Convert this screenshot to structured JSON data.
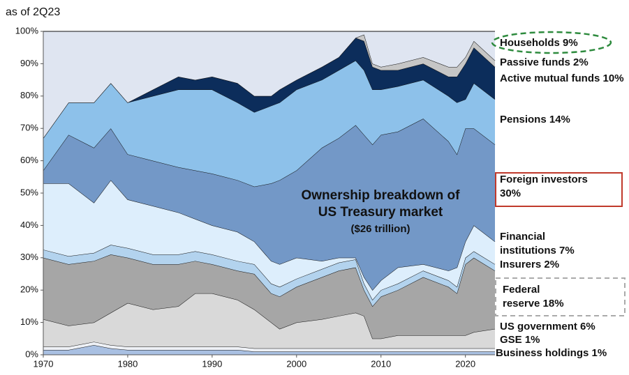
{
  "chart_data": {
    "type": "stacked_area",
    "annotation": "as of 2Q23",
    "title": [
      "Ownership breakdown of",
      "US Treasury market"
    ],
    "subtitle": "($26 trillion)",
    "x": [
      1970,
      1973,
      1976,
      1978,
      1980,
      1983,
      1986,
      1988,
      1990,
      1993,
      1995,
      1997,
      1998,
      2000,
      2003,
      2005,
      2007,
      2008,
      2009,
      2010,
      2012,
      2015,
      2018,
      2019,
      2020,
      2021,
      2023.5
    ],
    "xlim": [
      1970,
      2023.5
    ],
    "xticks": [
      1970,
      1980,
      1990,
      2000,
      2010,
      2020
    ],
    "ylim": [
      0,
      100
    ],
    "yticks": [
      {
        "value": 0,
        "label": "0%"
      },
      {
        "value": 10,
        "label": "10%"
      },
      {
        "value": 20,
        "label": "20%"
      },
      {
        "value": 30,
        "label": "30%"
      },
      {
        "value": 40,
        "label": "40%"
      },
      {
        "value": 50,
        "label": "50%"
      },
      {
        "value": 60,
        "label": "60%"
      },
      {
        "value": 70,
        "label": "70%"
      },
      {
        "value": 80,
        "label": "80%"
      },
      {
        "value": 90,
        "label": "90%"
      },
      {
        "value": 100,
        "label": "100%"
      }
    ],
    "grid": false,
    "series": [
      {
        "name": "Business holdings 1%",
        "color": "#a9c0e2",
        "values": [
          1.5,
          1.5,
          3,
          2,
          1.5,
          1.5,
          1.5,
          1.5,
          1.5,
          1.5,
          1,
          1,
          1,
          1,
          1,
          1,
          1,
          1,
          1,
          1,
          1,
          1,
          1,
          1,
          1,
          1,
          1
        ]
      },
      {
        "name": "GSE 1%",
        "color": "#eef1f6",
        "values": [
          1,
          1,
          1,
          1,
          1,
          1,
          1,
          1,
          1,
          1,
          1,
          1,
          1,
          1,
          1,
          1,
          1,
          1,
          1,
          1,
          1,
          1,
          1,
          1,
          1,
          1,
          1
        ]
      },
      {
        "name": "US government 6%",
        "color": "#d9d9d9",
        "values": [
          8.5,
          6.5,
          6,
          10,
          13.5,
          11.5,
          12.5,
          16.5,
          16.5,
          14.5,
          12,
          8,
          6,
          8,
          9,
          10,
          11,
          10,
          3,
          3,
          4,
          4,
          4,
          4,
          4,
          5,
          6
        ]
      },
      {
        "name": "Federal reserve 18%",
        "color": "#a6a6a6",
        "values": [
          19,
          19,
          19,
          18,
          14,
          14,
          13,
          10,
          9,
          9,
          11,
          9,
          10,
          11,
          13,
          14,
          14,
          8,
          10,
          13,
          14,
          18,
          15,
          13,
          22,
          23,
          18
        ]
      },
      {
        "name": "Insurers 2%",
        "color": "#b3d3ee",
        "values": [
          2.5,
          2.5,
          2.5,
          3,
          3,
          3,
          3,
          3,
          3,
          3,
          3,
          3,
          3,
          2.5,
          2.5,
          2.5,
          2.5,
          2,
          2,
          2,
          2,
          2,
          2,
          2,
          2,
          2,
          2
        ]
      },
      {
        "name": "Financial institutions 7%",
        "color": "#ddeefc",
        "values": [
          20.5,
          22.5,
          15.5,
          20,
          15,
          15,
          13,
          10,
          9,
          9,
          7,
          7,
          7,
          6.5,
          2.5,
          1.5,
          0.5,
          2,
          3,
          3,
          5,
          2,
          3,
          6,
          5,
          8,
          7
        ]
      },
      {
        "name": "Foreign investors 30%",
        "color": "#7398c7",
        "values": [
          4,
          15,
          17,
          16,
          14,
          14,
          14,
          15,
          16,
          16,
          17,
          24,
          26,
          27,
          35,
          37,
          41,
          44,
          45,
          45,
          42,
          45,
          40,
          35,
          35,
          30,
          30
        ]
      },
      {
        "name": "Pensions 14%",
        "color": "#8dc1ea",
        "values": [
          10,
          10,
          14,
          14,
          16,
          20,
          24,
          25,
          26,
          24,
          23,
          24,
          24,
          25,
          21,
          21,
          20,
          20,
          17,
          14,
          14,
          12,
          14,
          16,
          9,
          14,
          14
        ]
      },
      {
        "name": "Active mutual funds 10%",
        "color": "#0c2d5b",
        "values": [
          0,
          0,
          0,
          0,
          0,
          2,
          4,
          3,
          4,
          6,
          5,
          3,
          4,
          3,
          4,
          4,
          7,
          9,
          7,
          6,
          5,
          5,
          6,
          8,
          11,
          11,
          10
        ]
      },
      {
        "name": "Passive funds 2%",
        "color": "#c6c6c6",
        "values": [
          0,
          0,
          0,
          0,
          0,
          0,
          0,
          0,
          0,
          0,
          0,
          0,
          0,
          0,
          0,
          0,
          0,
          2,
          1,
          1,
          2,
          2,
          3,
          3,
          2,
          2,
          2
        ]
      },
      {
        "name": "Households 9%",
        "color": "#dfe5f1",
        "values": [
          33,
          22,
          22,
          16,
          22,
          18,
          14,
          15,
          14,
          16,
          20,
          20,
          18,
          15,
          11,
          8,
          2,
          1,
          10,
          11,
          10,
          8,
          11,
          11,
          8,
          3,
          9
        ]
      }
    ]
  }
}
